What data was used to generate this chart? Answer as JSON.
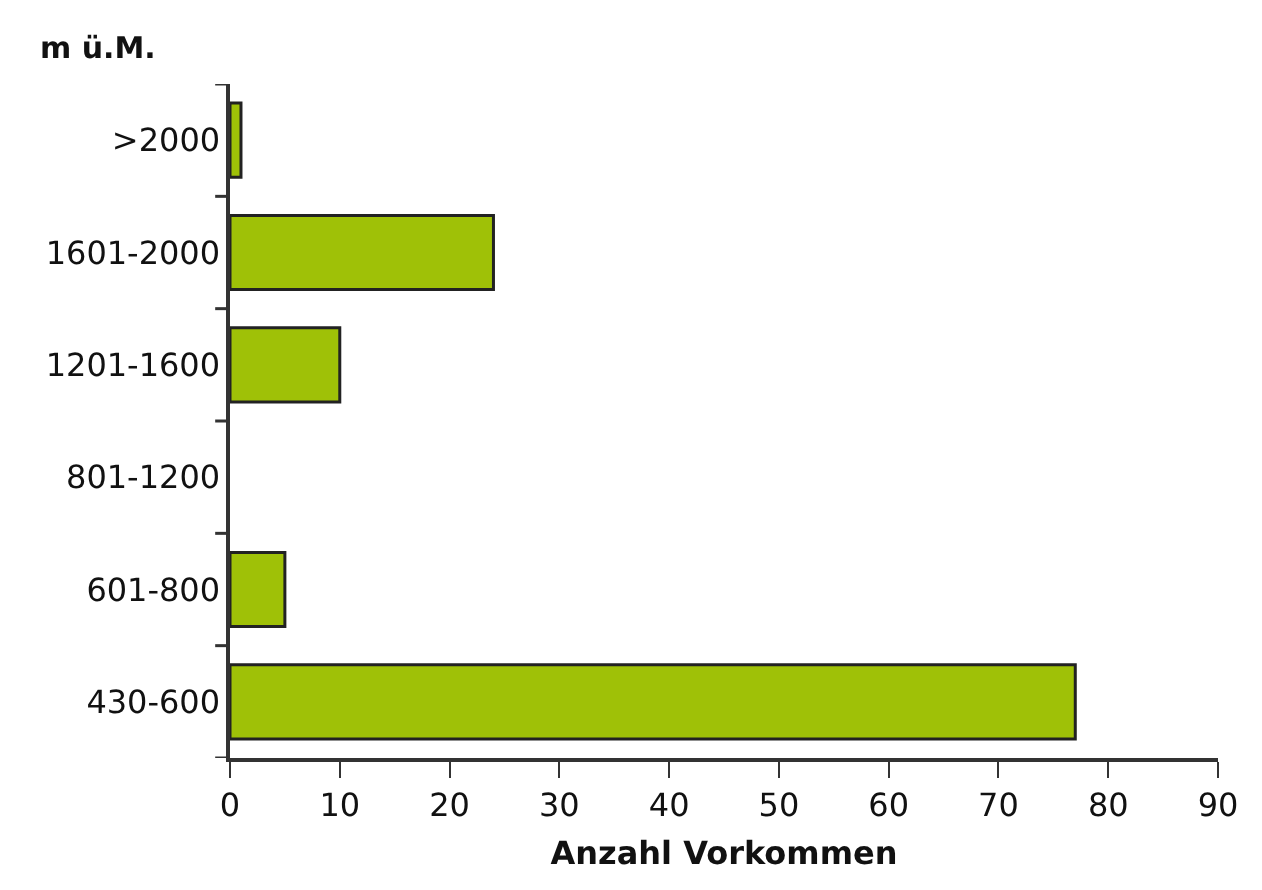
{
  "chart_data": {
    "type": "bar",
    "orientation": "horizontal",
    "xlabel": "Anzahl Vorkommen",
    "ylabel": "m ü.M.",
    "categories": [
      ">2000",
      "1601-2000",
      "1201-1600",
      "801-1200",
      "601-800",
      "430-600"
    ],
    "values": [
      1,
      24,
      10,
      0,
      5,
      77
    ],
    "color": "#9fc107",
    "xlim": [
      0,
      90
    ],
    "xticks": [
      0,
      10,
      20,
      30,
      40,
      50,
      60,
      70,
      80,
      90
    ],
    "legend": false
  }
}
